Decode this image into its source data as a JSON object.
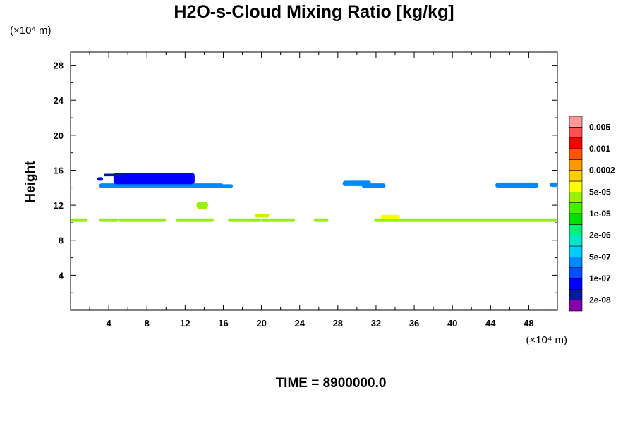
{
  "chart_data": {
    "type": "heatmap",
    "title": "H2O-s-Cloud Mixing Ratio [kg/kg]",
    "ylabel": "Height",
    "x_unit": "(×10⁴ m)",
    "y_unit": "(×10⁴ m)",
    "xlim": [
      0,
      51
    ],
    "ylim": [
      0,
      29.5
    ],
    "xticks": [
      4,
      8,
      12,
      16,
      20,
      24,
      28,
      32,
      36,
      40,
      44,
      48
    ],
    "yticks": [
      4,
      8,
      12,
      16,
      20,
      24,
      28
    ],
    "colorbar": {
      "colors": [
        "#8800aa",
        "#001aa0",
        "#0000ff",
        "#0050ff",
        "#0088ff",
        "#00ccff",
        "#00e8c8",
        "#00f078",
        "#00e000",
        "#44f000",
        "#99f000",
        "#ffff00",
        "#ffcc00",
        "#ff9900",
        "#ff5500",
        "#ff0000",
        "#ff5050",
        "#ff9999"
      ],
      "labels": [
        "2e-08",
        "1e-07",
        "5e-07",
        "2e-06",
        "1e-05",
        "5e-05",
        "0.0002",
        "0.001",
        "0.005"
      ]
    },
    "regions": [
      {
        "x": [
          0.0,
          1.8
        ],
        "y": [
          10.1,
          10.5
        ],
        "color": "#99f000"
      },
      {
        "x": [
          3.0,
          5.0
        ],
        "y": [
          10.1,
          10.5
        ],
        "color": "#99f000"
      },
      {
        "x": [
          5.0,
          10.0
        ],
        "y": [
          10.1,
          10.5
        ],
        "color": "#99f000"
      },
      {
        "x": [
          11.0,
          15.0
        ],
        "y": [
          10.1,
          10.5
        ],
        "color": "#99f000"
      },
      {
        "x": [
          16.5,
          20.0
        ],
        "y": [
          10.1,
          10.5
        ],
        "color": "#99f000"
      },
      {
        "x": [
          20.0,
          23.5
        ],
        "y": [
          10.1,
          10.5
        ],
        "color": "#99f000"
      },
      {
        "x": [
          25.5,
          27.0
        ],
        "y": [
          10.1,
          10.5
        ],
        "color": "#99f000"
      },
      {
        "x": [
          31.8,
          51.0
        ],
        "y": [
          10.1,
          10.5
        ],
        "color": "#99f000"
      },
      {
        "x": [
          19.3,
          20.8
        ],
        "y": [
          10.6,
          11.0
        ],
        "color": "#ccf000"
      },
      {
        "x": [
          32.5,
          34.5
        ],
        "y": [
          10.4,
          10.9
        ],
        "color": "#ffff00"
      },
      {
        "x": [
          13.2,
          14.4
        ],
        "y": [
          11.6,
          12.4
        ],
        "color": "#99f000"
      },
      {
        "x": [
          3.0,
          16.0
        ],
        "y": [
          14.0,
          14.5
        ],
        "color": "#0088ff"
      },
      {
        "x": [
          15.5,
          17.0
        ],
        "y": [
          14.0,
          14.4
        ],
        "color": "#0088ff"
      },
      {
        "x": [
          4.5,
          13.0
        ],
        "y": [
          14.4,
          15.7
        ],
        "color": "#0000ff"
      },
      {
        "x": [
          3.5,
          5.5
        ],
        "y": [
          15.3,
          15.6
        ],
        "color": "#001aa0"
      },
      {
        "x": [
          2.8,
          3.4
        ],
        "y": [
          14.8,
          15.2
        ],
        "color": "#0000ff"
      },
      {
        "x": [
          28.5,
          31.5
        ],
        "y": [
          14.2,
          14.8
        ],
        "color": "#0088ff"
      },
      {
        "x": [
          30.5,
          33.0
        ],
        "y": [
          14.0,
          14.5
        ],
        "color": "#0088ff"
      },
      {
        "x": [
          44.5,
          49.0
        ],
        "y": [
          14.0,
          14.6
        ],
        "color": "#0088ff"
      },
      {
        "x": [
          50.2,
          51.0
        ],
        "y": [
          14.1,
          14.6
        ],
        "color": "#0088ff"
      }
    ]
  },
  "footer": {
    "time_label": "TIME = 8900000.0"
  }
}
